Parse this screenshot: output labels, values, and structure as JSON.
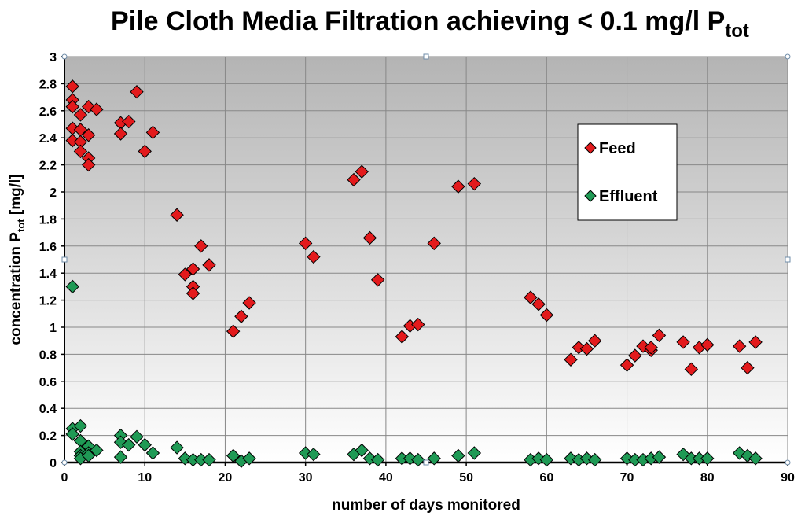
{
  "chart_data": {
    "type": "scatter",
    "title": "Pile Cloth Media Filtration achieving < 0.1 mg/l P",
    "title_subscript": "tot",
    "xlabel": "number of days monitored",
    "ylabel_main": "concentration P",
    "ylabel_subscript": "tot",
    "ylabel_unit": " [mg/l]",
    "xlim": [
      0,
      90
    ],
    "ylim": [
      0,
      3
    ],
    "x_ticks": [
      "0",
      "10",
      "20",
      "30",
      "40",
      "50",
      "60",
      "70",
      "80",
      "90"
    ],
    "y_ticks": [
      "0",
      "0.2",
      "0.4",
      "0.6",
      "0.8",
      "1",
      "1.2",
      "1.4",
      "1.6",
      "1.8",
      "2",
      "2.2",
      "2.4",
      "2.6",
      "2.8",
      "3"
    ],
    "grid": true,
    "legend_position": "upper-right",
    "marker": "diamond",
    "series": [
      {
        "name": "Feed",
        "color": "#e31a1c",
        "points": [
          [
            1,
            2.78
          ],
          [
            1,
            2.68
          ],
          [
            1,
            2.63
          ],
          [
            1,
            2.47
          ],
          [
            1,
            2.38
          ],
          [
            2,
            2.57
          ],
          [
            2,
            2.46
          ],
          [
            2,
            2.37
          ],
          [
            2,
            2.3
          ],
          [
            3,
            2.63
          ],
          [
            3,
            2.42
          ],
          [
            3,
            2.25
          ],
          [
            3,
            2.2
          ],
          [
            4,
            2.61
          ],
          [
            7,
            2.51
          ],
          [
            7,
            2.43
          ],
          [
            8,
            2.52
          ],
          [
            9,
            2.74
          ],
          [
            10,
            2.3
          ],
          [
            11,
            2.44
          ],
          [
            14,
            1.83
          ],
          [
            15,
            1.39
          ],
          [
            16,
            1.43
          ],
          [
            16,
            1.3
          ],
          [
            16,
            1.25
          ],
          [
            17,
            1.6
          ],
          [
            18,
            1.46
          ],
          [
            21,
            0.97
          ],
          [
            22,
            1.08
          ],
          [
            23,
            1.18
          ],
          [
            30,
            1.62
          ],
          [
            31,
            1.52
          ],
          [
            36,
            2.09
          ],
          [
            37,
            2.15
          ],
          [
            38,
            1.66
          ],
          [
            39,
            1.35
          ],
          [
            42,
            0.93
          ],
          [
            43,
            1.01
          ],
          [
            44,
            1.02
          ],
          [
            46,
            1.62
          ],
          [
            49,
            2.04
          ],
          [
            51,
            2.06
          ],
          [
            58,
            1.22
          ],
          [
            59,
            1.17
          ],
          [
            60,
            1.09
          ],
          [
            63,
            0.76
          ],
          [
            64,
            0.85
          ],
          [
            65,
            0.84
          ],
          [
            66,
            0.9
          ],
          [
            70,
            0.72
          ],
          [
            71,
            0.79
          ],
          [
            72,
            0.86
          ],
          [
            73,
            0.83
          ],
          [
            73,
            0.85
          ],
          [
            74,
            0.94
          ],
          [
            77,
            0.89
          ],
          [
            78,
            0.69
          ],
          [
            79,
            0.85
          ],
          [
            80,
            0.87
          ],
          [
            84,
            0.86
          ],
          [
            85,
            0.7
          ],
          [
            86,
            0.89
          ]
        ]
      },
      {
        "name": "Effluent",
        "color": "#1f9a55",
        "points": [
          [
            1,
            1.3
          ],
          [
            1,
            0.25
          ],
          [
            1,
            0.21
          ],
          [
            2,
            0.27
          ],
          [
            2,
            0.16
          ],
          [
            2,
            0.08
          ],
          [
            2,
            0.05
          ],
          [
            2,
            0.03
          ],
          [
            3,
            0.12
          ],
          [
            3,
            0.07
          ],
          [
            3,
            0.05
          ],
          [
            4,
            0.09
          ],
          [
            7,
            0.2
          ],
          [
            7,
            0.15
          ],
          [
            7,
            0.04
          ],
          [
            8,
            0.13
          ],
          [
            9,
            0.19
          ],
          [
            10,
            0.13
          ],
          [
            11,
            0.07
          ],
          [
            14,
            0.11
          ],
          [
            15,
            0.03
          ],
          [
            16,
            0.02
          ],
          [
            17,
            0.02
          ],
          [
            18,
            0.02
          ],
          [
            21,
            0.05
          ],
          [
            22,
            0.01
          ],
          [
            23,
            0.03
          ],
          [
            30,
            0.07
          ],
          [
            31,
            0.06
          ],
          [
            36,
            0.06
          ],
          [
            37,
            0.09
          ],
          [
            38,
            0.03
          ],
          [
            39,
            0.02
          ],
          [
            42,
            0.03
          ],
          [
            43,
            0.03
          ],
          [
            44,
            0.02
          ],
          [
            46,
            0.03
          ],
          [
            49,
            0.05
          ],
          [
            51,
            0.07
          ],
          [
            58,
            0.02
          ],
          [
            59,
            0.03
          ],
          [
            60,
            0.02
          ],
          [
            63,
            0.03
          ],
          [
            64,
            0.02
          ],
          [
            65,
            0.03
          ],
          [
            66,
            0.02
          ],
          [
            70,
            0.03
          ],
          [
            71,
            0.02
          ],
          [
            72,
            0.02
          ],
          [
            73,
            0.03
          ],
          [
            74,
            0.04
          ],
          [
            77,
            0.06
          ],
          [
            78,
            0.03
          ],
          [
            79,
            0.03
          ],
          [
            80,
            0.03
          ],
          [
            84,
            0.07
          ],
          [
            85,
            0.05
          ],
          [
            86,
            0.03
          ]
        ]
      }
    ]
  }
}
